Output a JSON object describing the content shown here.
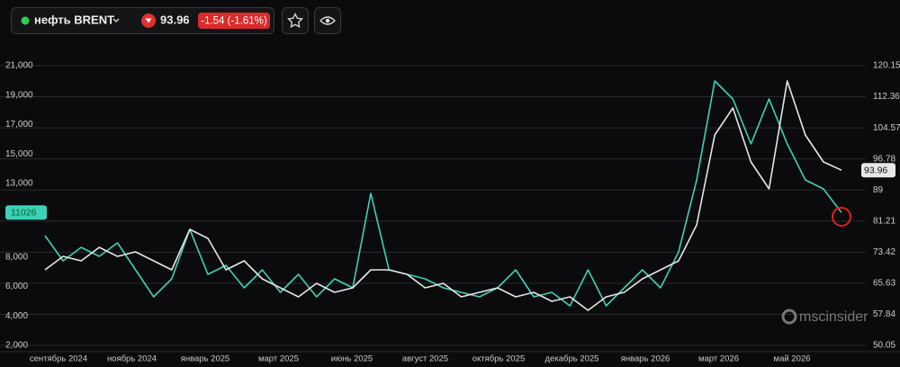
{
  "header": {
    "instrument": "нефть BRENT",
    "change": "-1.54 (-1.61%)"
  },
  "watermark": "mscinsider",
  "chart_data": {
    "type": "line",
    "x_labels": [
      "сентябрь 2024",
      "ноябрь 2024",
      "январь 2025",
      "март 2025",
      "июнь 2025",
      "август 2025",
      "октябрь 2025",
      "декабрь 2025",
      "январь 2026",
      "март 2026",
      "май 2026"
    ],
    "ylim": [
      2000,
      21000
    ],
    "yticks": [
      {
        "value": 21000,
        "label": "21,000"
      },
      {
        "value": 19000,
        "label": "19,000"
      },
      {
        "value": 17000,
        "label": "17,000"
      },
      {
        "value": 15000,
        "label": "15,000"
      },
      {
        "value": 13000,
        "label": "13,000"
      },
      {
        "value": 8000,
        "label": "8,000"
      },
      {
        "value": 6000,
        "label": "6,000"
      },
      {
        "value": 4000,
        "label": "4,000"
      },
      {
        "value": 2000,
        "label": "2,000"
      }
    ],
    "y2lim": [
      50.05,
      120.15
    ],
    "y2ticks": [
      120.15,
      112.36,
      104.57,
      96.78,
      89,
      81.21,
      73.42,
      65.63,
      57.84,
      50.05
    ],
    "grid": true,
    "series": [
      {
        "color": "#3fd0b8",
        "values": [
          9454,
          7743,
          8660,
          8049,
          8965,
          7132,
          5299,
          6521,
          9882,
          6827,
          7438,
          5910,
          7132,
          5605,
          6827,
          5299,
          6521,
          5910,
          12326,
          7132,
          6827,
          6521,
          5910,
          5605,
          5299,
          5910,
          7132,
          5299,
          5605,
          4688,
          7132,
          4688,
          5910,
          7132,
          5910,
          8354,
          13242,
          19963,
          18741,
          15686,
          18741,
          15686,
          13242,
          12631,
          11026
        ]
      },
      {
        "color": "#e6e6e6",
        "axis": "y2",
        "values": [
          68.98,
          72.36,
          71.24,
          74.62,
          72.36,
          73.49,
          71.24,
          68.98,
          79.13,
          76.87,
          68.98,
          71.24,
          66.73,
          64.48,
          62.22,
          65.6,
          63.35,
          64.48,
          68.98,
          68.98,
          67.86,
          64.48,
          65.6,
          62.22,
          63.35,
          64.48,
          62.22,
          63.35,
          61.09,
          62.22,
          58.84,
          62.22,
          63.35,
          66.73,
          68.98,
          71.24,
          80.25,
          102.79,
          109.56,
          96.03,
          89.27,
          116.32,
          102.79,
          96.03,
          93.96
        ]
      }
    ]
  }
}
